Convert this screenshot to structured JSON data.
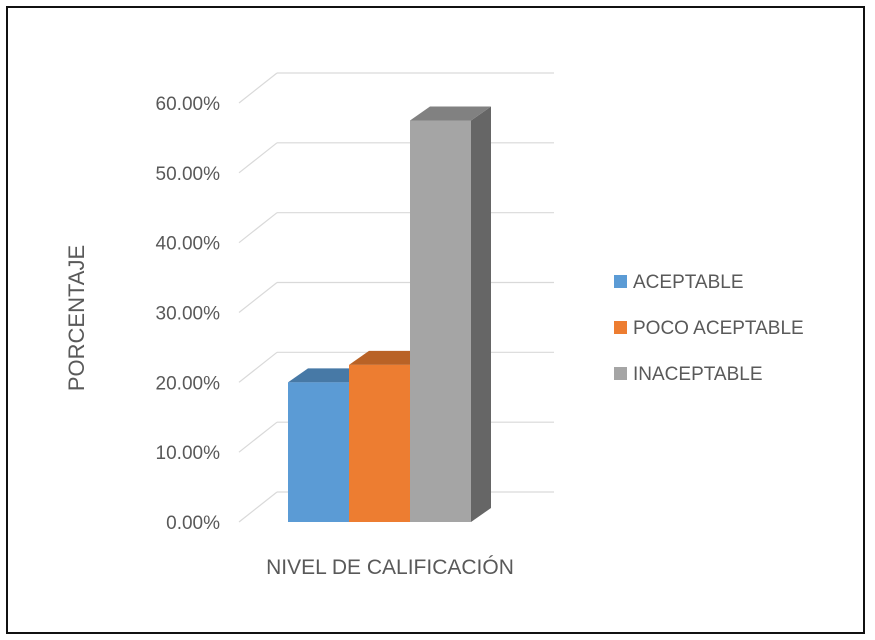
{
  "chart_data": {
    "type": "bar",
    "categories": [
      "NIVEL DE CALIFICACIÓN"
    ],
    "series": [
      {
        "name": "ACEPTABLE",
        "values": [
          20.0
        ],
        "color": "#5B9BD5"
      },
      {
        "name": "POCO ACEPTABLE",
        "values": [
          22.5
        ],
        "color": "#ED7D31"
      },
      {
        "name": "INACEPTABLE",
        "values": [
          57.5
        ],
        "color": "#A5A5A5"
      }
    ],
    "xlabel": "NIVEL DE CALIFICACIÓN",
    "ylabel": "PORCENTAJE",
    "ylim": [
      0,
      60
    ],
    "yticks": [
      "0.00%",
      "10.00%",
      "20.00%",
      "30.00%",
      "40.00%",
      "50.00%",
      "60.00%"
    ],
    "grid": true,
    "legend_position": "right",
    "three_d": true
  }
}
